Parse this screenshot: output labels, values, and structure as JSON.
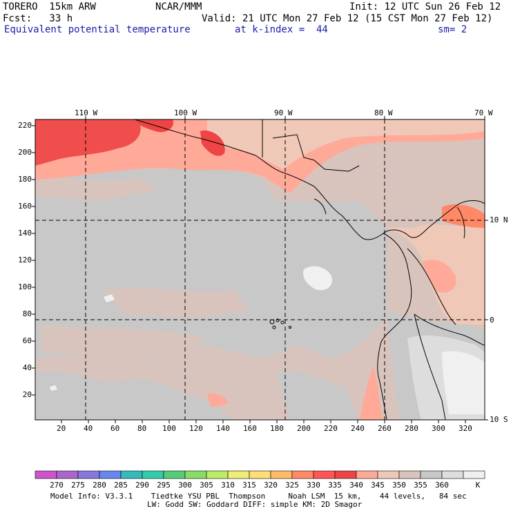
{
  "header": {
    "model": "TORERO  15km ARW",
    "org": "NCAR/MMM",
    "init": "Init: 12 UTC Sun 26 Feb 12",
    "fcst_label": "Fcst:   33 h",
    "valid": "Valid: 21 UTC Mon 27 Feb 12 (15 CST Mon 27 Feb 12)",
    "field": "Equivalent potential temperature",
    "level": "at k-index =  44",
    "smooth": "sm= 2"
  },
  "top_axis": [
    "110 W",
    "100 W",
    "90 W",
    "80 W",
    "70 W"
  ],
  "right_axis": [
    "10 N",
    "0",
    "10 S"
  ],
  "left_axis": [
    "220",
    "200",
    "180",
    "160",
    "140",
    "120",
    "100",
    "80",
    "60",
    "40",
    "20"
  ],
  "bottom_axis": [
    "20",
    "40",
    "60",
    "80",
    "100",
    "120",
    "140",
    "160",
    "180",
    "200",
    "220",
    "240",
    "260",
    "280",
    "300",
    "320"
  ],
  "colorbar": {
    "labels": [
      "270",
      "275",
      "280",
      "285",
      "290",
      "295",
      "300",
      "305",
      "310",
      "315",
      "320",
      "325",
      "330",
      "335",
      "340",
      "345",
      "350",
      "355",
      "360"
    ],
    "unit": "K",
    "colors": [
      "#cc55cc",
      "#aa66cc",
      "#8877dd",
      "#6688ee",
      "#33bbbb",
      "#33ccaa",
      "#55cc77",
      "#88dd66",
      "#bbee66",
      "#eeee77",
      "#ffdd77",
      "#ffbb66",
      "#ff8866",
      "#ff5555",
      "#ee4444",
      "#ffaa99",
      "#f0c8b8",
      "#d8c4bc",
      "#c8c8c8",
      "#dddddd",
      "#f0f0f0"
    ]
  },
  "footer": {
    "line1": "Model Info: V3.3.1    Tiedtke YSU PBL  Thompson     Noah LSM  15 km,    44 levels,   84 sec",
    "line2": "LW: Godd SW: Goddard DIFF: simple KM: 2D Smagor"
  }
}
